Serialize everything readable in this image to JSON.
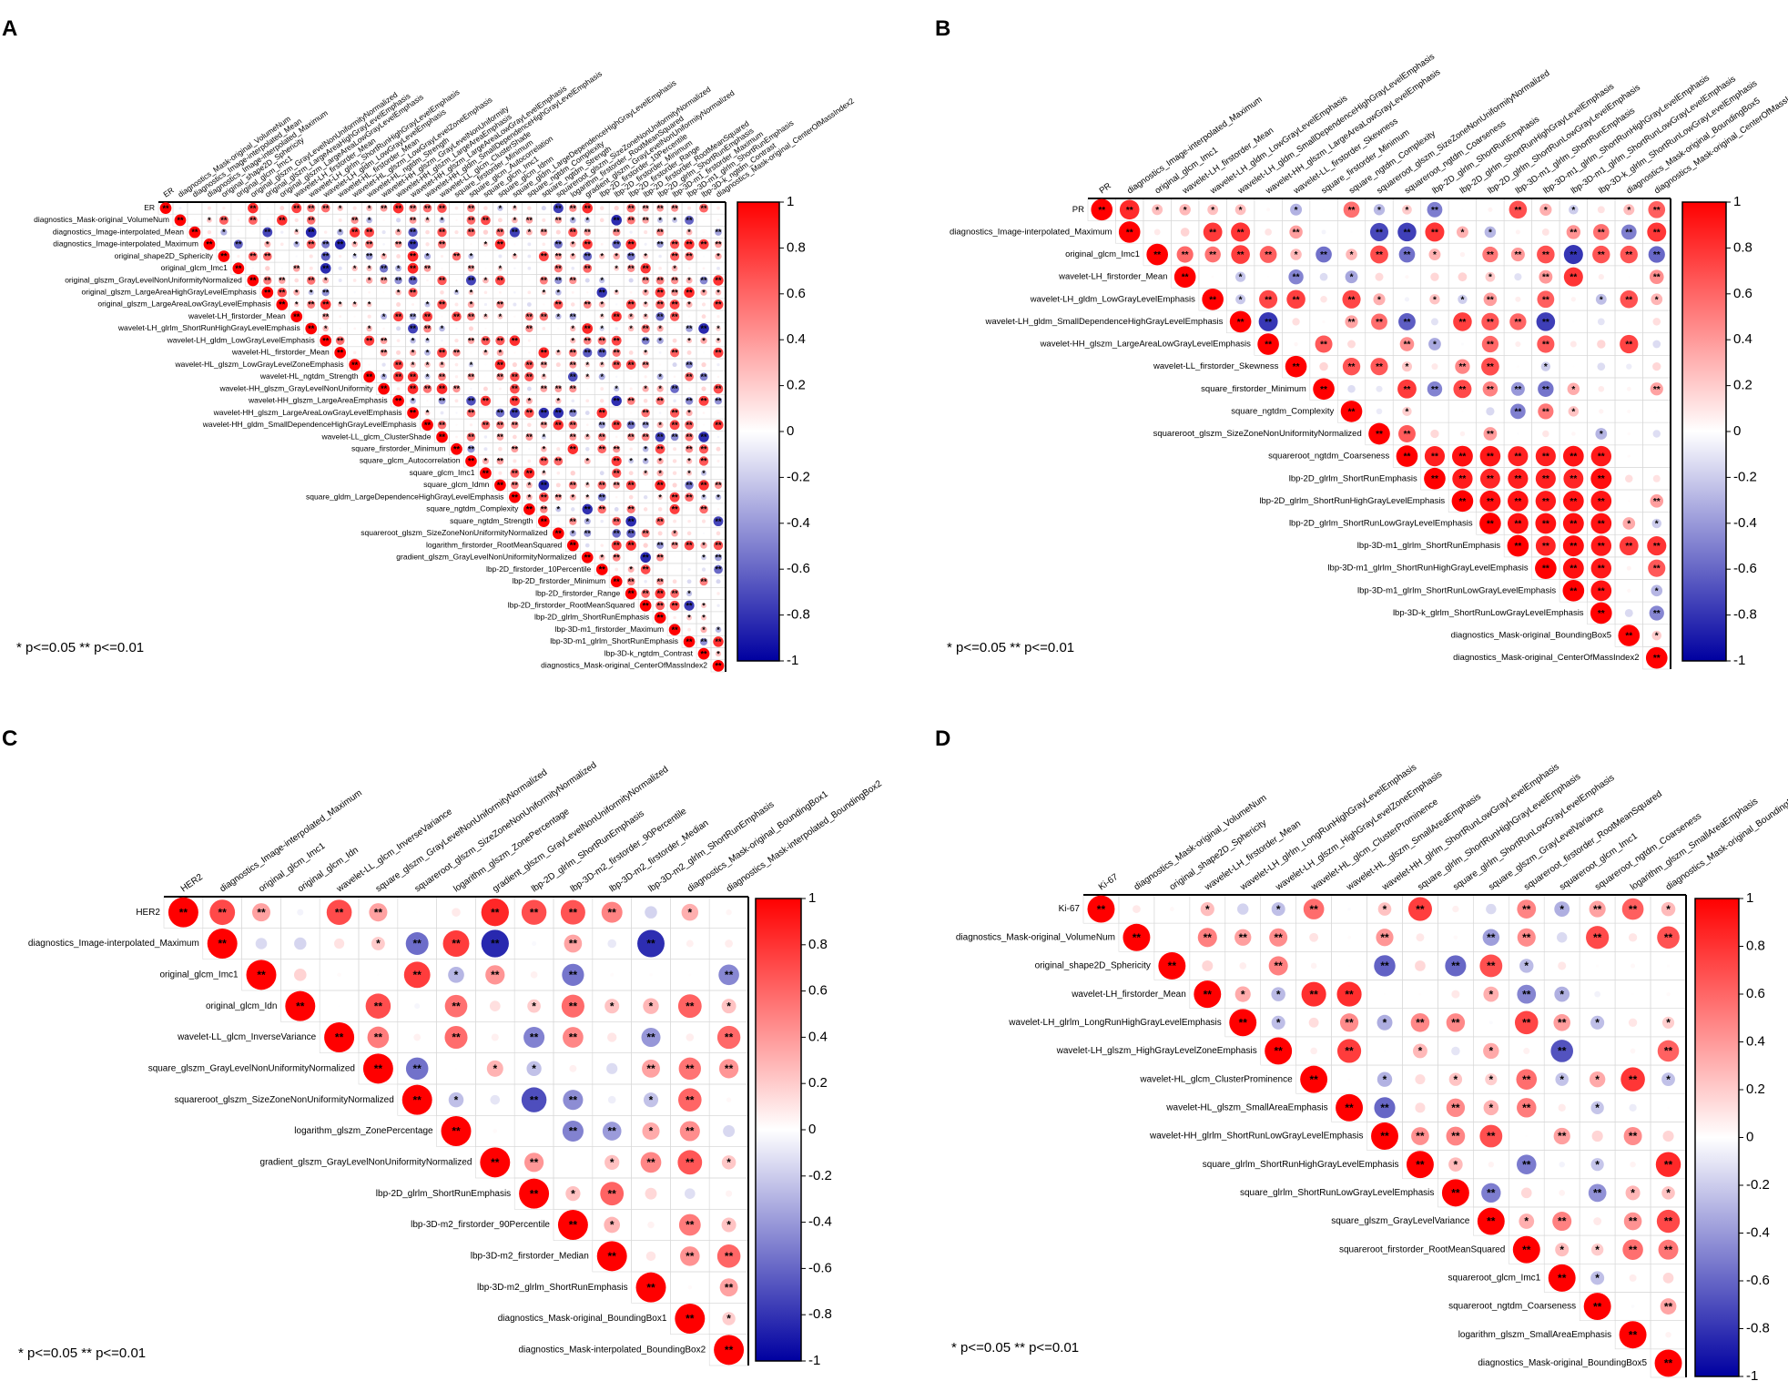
{
  "figure": {
    "significance_note": "* p<=0.05  ** p<=0.01",
    "colorbar_ticks": [
      "1",
      "0.8",
      "0.6",
      "0.4",
      "0.2",
      "0",
      "-0.2",
      "-0.4",
      "-0.6",
      "-0.8",
      "-1"
    ],
    "colors": {
      "positive": "#ff0000",
      "neutral": "#ffffff",
      "negative": "#0000a0",
      "grid": "#d8d8d8",
      "axis": "#000000"
    }
  },
  "chart_data": [
    {
      "panel": "A",
      "type": "heatmap",
      "title": "",
      "zlim": [
        -1,
        1
      ],
      "labels": [
        "ER",
        "diagnostics_Mask-original_VolumeNum",
        "diagnostics_Image-interpolated_Mean",
        "diagnostics_Image-interpolated_Maximum",
        "original_shape2D_Sphericity",
        "original_glcm_Imc1",
        "original_glszm_GrayLevelNonUniformityNormalized",
        "original_glszm_LargeAreaHighGrayLevelEmphasis",
        "original_glszm_LargeAreaLowGrayLevelEmphasis",
        "wavelet-LH_firstorder_Mean",
        "wavelet-LH_glrlm_ShortRunHighGrayLevelEmphasis",
        "wavelet-LH_gldm_LowGrayLevelEmphasis",
        "wavelet-HL_firstorder_Mean",
        "wavelet-HL_glszm_LowGrayLevelZoneEmphasis",
        "wavelet-HL_ngtdm_Strength",
        "wavelet-HH_glszm_GrayLevelNonUniformity",
        "wavelet-HH_glszm_LargeAreaEmphasis",
        "wavelet-HH_glszm_LargeAreaLowGrayLevelEmphasis",
        "wavelet-HH_gldm_SmallDependenceHighGrayLevelEmphasis",
        "wavelet-LL_glcm_ClusterShade",
        "square_firstorder_Minimum",
        "square_glcm_Autocorrelation",
        "square_glcm_Imc1",
        "square_glcm_Idmn",
        "square_gldm_LargeDependenceHighGrayLevelEmphasis",
        "square_ngtdm_Complexity",
        "square_ngtdm_Strength",
        "squareroot_glszm_SizeZoneNonUniformityNormalized",
        "logarithm_firstorder_RootMeanSquared",
        "gradient_glszm_GrayLevelNonUniformityNormalized",
        "lbp-2D_firstorder_10Percentile",
        "lbp-2D_firstorder_Minimum",
        "lbp-2D_firstorder_Range",
        "lbp-2D_firstorder_RootMeanSquared",
        "lbp-2D_glrlm_ShortRunEmphasis",
        "lbp-3D-m1_firstorder_Maximum",
        "lbp-3D-m1_glrlm_ShortRunEmphasis",
        "lbp-3D-k_ngtdm_Contrast",
        "diagnostics_Mask-original_CenterOfMassIndex2"
      ]
    },
    {
      "panel": "B",
      "type": "heatmap",
      "title": "",
      "zlim": [
        -1,
        1
      ],
      "labels": [
        "PR",
        "diagnostics_Image-interpolated_Maximum",
        "original_glcm_Imc1",
        "wavelet-LH_firstorder_Mean",
        "wavelet-LH_gldm_LowGrayLevelEmphasis",
        "wavelet-LH_gldm_SmallDependenceHighGrayLevelEmphasis",
        "wavelet-HH_glszm_LargeAreaLowGrayLevelEmphasis",
        "wavelet-LL_firstorder_Skewness",
        "square_firstorder_Minimum",
        "square_ngtdm_Complexity",
        "squareroot_glszm_SizeZoneNonUniformityNormalized",
        "squareroot_ngtdm_Coarseness",
        "lbp-2D_glrlm_ShortRunEmphasis",
        "lbp-2D_glrlm_ShortRunHighGrayLevelEmphasis",
        "lbp-2D_glrlm_ShortRunLowGrayLevelEmphasis",
        "lbp-3D-m1_glrlm_ShortRunEmphasis",
        "lbp-3D-m1_glrlm_ShortRunHighGrayLevelEmphasis",
        "lbp-3D-m1_glrlm_ShortRunLowGrayLevelEmphasis",
        "lbp-3D-k_glrlm_ShortRunLowGrayLevelEmphasis",
        "diagnostics_Mask-original_BoundingBox5",
        "diagnostics_Mask-original_CenterOfMassIndex2"
      ]
    },
    {
      "panel": "C",
      "type": "heatmap",
      "title": "",
      "zlim": [
        -1,
        1
      ],
      "labels": [
        "HER2",
        "diagnostics_Image-interpolated_Maximum",
        "original_glcm_Imc1",
        "original_glcm_Idn",
        "wavelet-LL_glcm_InverseVariance",
        "square_glszm_GrayLevelNonUniformityNormalized",
        "squareroot_glszm_SizeZoneNonUniformityNormalized",
        "logarithm_glszm_ZonePercentage",
        "gradient_glszm_GrayLevelNonUniformityNormalized",
        "lbp-2D_glrlm_ShortRunEmphasis",
        "lbp-3D-m2_firstorder_90Percentile",
        "lbp-3D-m2_firstorder_Median",
        "lbp-3D-m2_glrlm_ShortRunEmphasis",
        "diagnostics_Mask-original_BoundingBox1",
        "diagnostics_Mask-interpolated_BoundingBox2"
      ]
    },
    {
      "panel": "D",
      "type": "heatmap",
      "title": "",
      "zlim": [
        -1,
        1
      ],
      "labels": [
        "Ki-67",
        "diagnostics_Mask-original_VolumeNum",
        "original_shape2D_Sphericity",
        "wavelet-LH_firstorder_Mean",
        "wavelet-LH_glrlm_LongRunHighGrayLevelEmphasis",
        "wavelet-LH_glszm_HighGrayLevelZoneEmphasis",
        "wavelet-HL_glcm_ClusterProminence",
        "wavelet-HL_glszm_SmallAreaEmphasis",
        "wavelet-HH_glrlm_ShortRunLowGrayLevelEmphasis",
        "square_glrlm_ShortRunHighGrayLevelEmphasis",
        "square_glrlm_ShortRunLowGrayLevelEmphasis",
        "square_glszm_GrayLevelVariance",
        "squareroot_firstorder_RootMeanSquared",
        "squareroot_glcm_Imc1",
        "squareroot_ngtdm_Coarseness",
        "logarithm_glszm_SmallAreaEmphasis",
        "diagnostics_Mask-original_BoundingBox5"
      ]
    }
  ]
}
